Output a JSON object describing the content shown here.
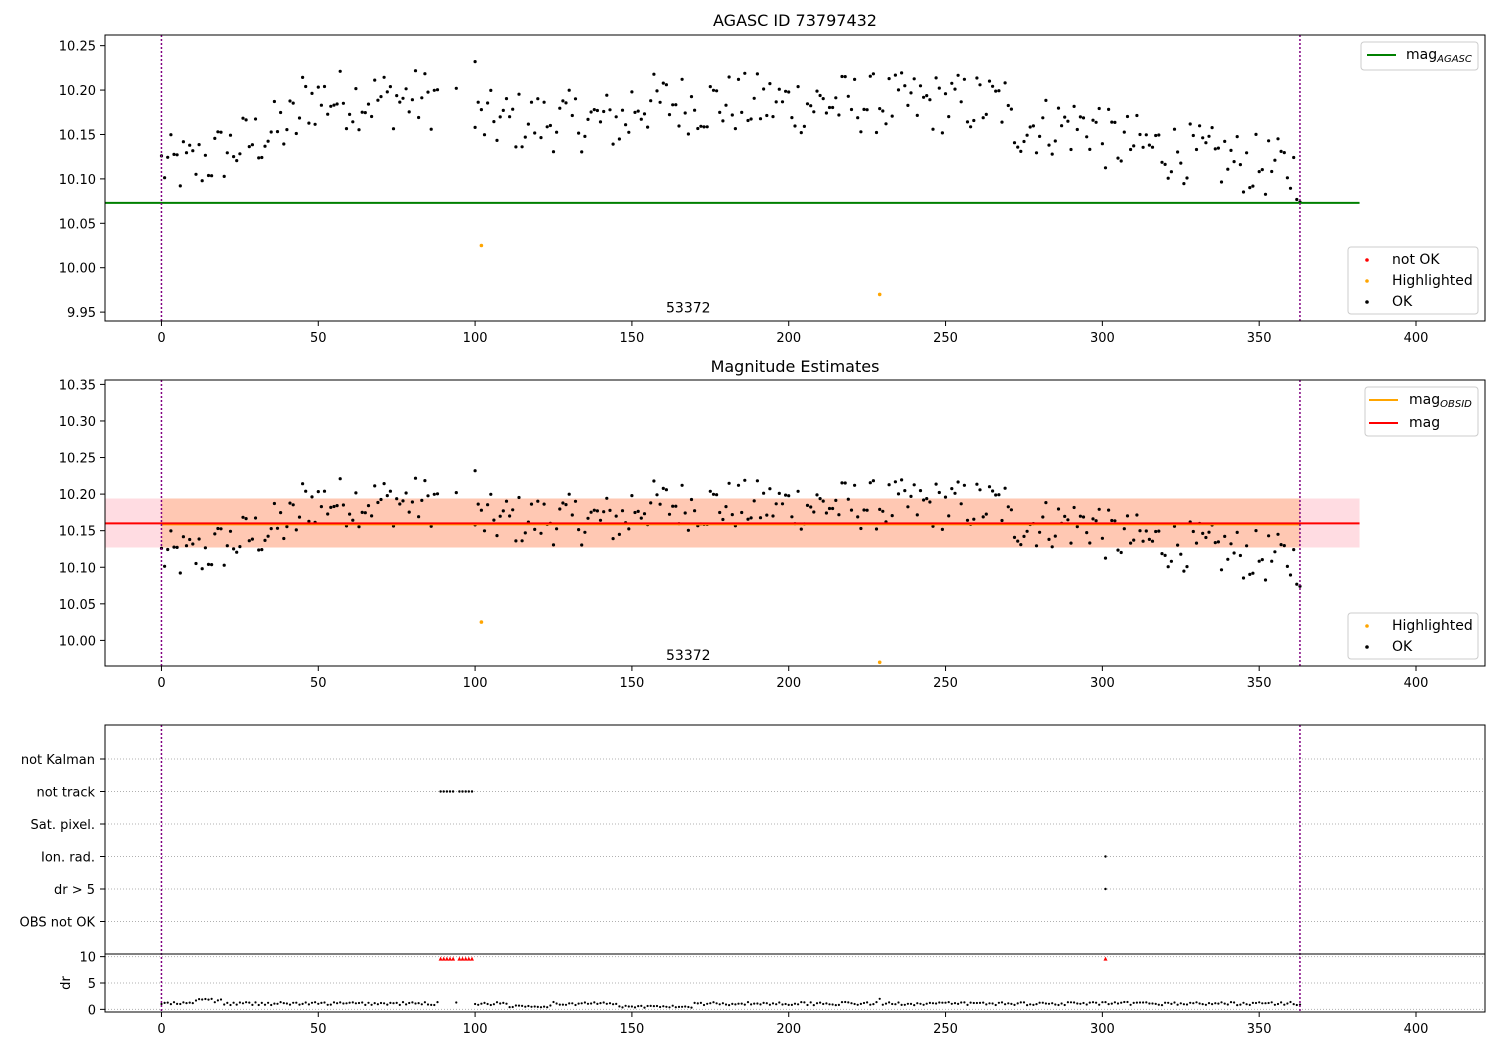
{
  "chart_data": [
    {
      "type": "scatter",
      "title": "AGASC ID 73797432",
      "xlim": [
        -18,
        422
      ],
      "ylim": [
        9.94,
        10.262
      ],
      "xticks": [
        0,
        50,
        100,
        150,
        200,
        250,
        300,
        350,
        400
      ],
      "yticks": [
        9.95,
        10.0,
        10.05,
        10.1,
        10.15,
        10.2,
        10.25
      ],
      "ytick_labels": [
        "9.95",
        "10.00",
        "10.05",
        "10.10",
        "10.15",
        "10.20",
        "10.25"
      ],
      "vlines": [
        0,
        363
      ],
      "mag_agasc": 10.073,
      "mag_agasc_xrange": [
        -18,
        382
      ],
      "annotation": {
        "text": "53372",
        "x": 180,
        "y": 9.955
      },
      "highlighted_points": [
        [
          102,
          10.025
        ],
        [
          229,
          9.97
        ]
      ],
      "legend_lines": [
        {
          "label": "mag",
          "sub": "AGASC",
          "color": "#008000"
        }
      ],
      "legend_points": [
        {
          "label": "not OK",
          "color": "#ff0000"
        },
        {
          "label": "Highlighted",
          "color": "#ffa500"
        },
        {
          "label": "OK",
          "color": "#000000"
        }
      ]
    },
    {
      "type": "scatter",
      "title": "Magnitude Estimates",
      "xlim": [
        -18,
        422
      ],
      "ylim": [
        9.965,
        10.356
      ],
      "xticks": [
        0,
        50,
        100,
        150,
        200,
        250,
        300,
        350,
        400
      ],
      "yticks": [
        10.0,
        10.05,
        10.1,
        10.15,
        10.2,
        10.25,
        10.3,
        10.35
      ],
      "ytick_labels": [
        "10.00",
        "10.05",
        "10.10",
        "10.15",
        "10.20",
        "10.25",
        "10.30",
        "10.35"
      ],
      "vlines": [
        0,
        363
      ],
      "mag": 10.16,
      "mag_band": [
        10.127,
        10.194
      ],
      "mag_obsid": 10.159,
      "mag_obsid_band": [
        10.127,
        10.194
      ],
      "band_xrange": [
        -18,
        382
      ],
      "annotation": {
        "text": "53372",
        "x": 180,
        "y": 9.98
      },
      "highlighted_points": [
        [
          102,
          10.025
        ],
        [
          229,
          9.97
        ]
      ],
      "legend_lines": [
        {
          "label": "mag",
          "sub": "OBSID",
          "color": "#ffa500"
        },
        {
          "label": "mag",
          "sub": "",
          "color": "#ff0000"
        }
      ],
      "legend_points": [
        {
          "label": "Highlighted",
          "color": "#ffa500"
        },
        {
          "label": "OK",
          "color": "#000000"
        }
      ]
    },
    {
      "type": "scatter",
      "title": "",
      "xlim": [
        -18,
        422
      ],
      "xticks": [
        0,
        50,
        100,
        150,
        200,
        250,
        300,
        350,
        400
      ],
      "vlines": [
        0,
        363
      ],
      "flag_categories": [
        "not Kalman",
        "not track",
        "Sat. pixel.",
        "Ion. rad.",
        "dr > 5",
        "OBS not OK"
      ],
      "flag_points": {
        "not track": [
          89,
          90,
          91,
          92,
          93,
          95,
          96,
          97,
          98,
          99
        ],
        "Ion. rad.": [
          301
        ],
        "dr > 5": [
          301
        ]
      },
      "dr_ylim": [
        -0.5,
        10.5
      ],
      "dr_yticks": [
        0,
        5,
        10
      ],
      "dr_ylabel": "dr",
      "dr_clipped_x": [
        89,
        90,
        91,
        92,
        93,
        95,
        96,
        97,
        98,
        99,
        301
      ]
    }
  ],
  "colors": {
    "ok": "#000000",
    "not_ok": "#ff0000",
    "highlighted": "#ffa500",
    "mag_agasc": "#008000",
    "mag": "#ff0000",
    "mag_obsid": "#ffa500",
    "vline": "#800080",
    "grid": "#b0b0b0"
  }
}
